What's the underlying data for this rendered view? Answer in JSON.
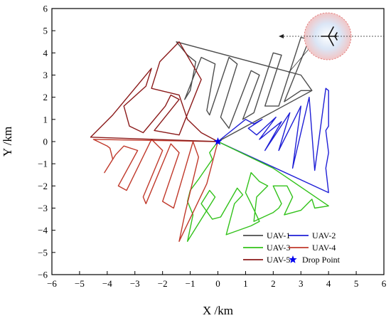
{
  "chart_data": {
    "type": "line",
    "xlabel": "X /km",
    "ylabel": "Y /km",
    "xlim": [
      -6,
      6
    ],
    "ylim": [
      -6,
      6
    ],
    "ticks": [
      -6,
      -5,
      -4,
      -3,
      -2,
      -1,
      0,
      1,
      2,
      3,
      4,
      5,
      6
    ],
    "tick_labels": [
      "−6",
      "−5",
      "−4",
      "−3",
      "−2",
      "−1",
      "0",
      "1",
      "2",
      "3",
      "4",
      "5",
      "6"
    ],
    "grid": false,
    "legend_position": "bottom-right",
    "series": [
      {
        "name": "UAV-1",
        "color": "#4d4d4d",
        "points": [
          [
            0,
            0
          ],
          [
            3.4,
            2.3
          ],
          [
            3.0,
            2.3
          ],
          [
            2.4,
            1.8
          ],
          [
            3.3,
            4.6
          ],
          [
            3.0,
            4.7
          ],
          [
            2.2,
            1.6
          ],
          [
            1.7,
            1.6
          ],
          [
            2.3,
            3.9
          ],
          [
            2.0,
            4.0
          ],
          [
            1.3,
            1.3
          ],
          [
            0.9,
            1.0
          ],
          [
            1.5,
            3.0
          ],
          [
            1.2,
            3.2
          ],
          [
            0.4,
            0.6
          ],
          [
            0.1,
            1.1
          ],
          [
            0.7,
            3.5
          ],
          [
            0.4,
            3.8
          ],
          [
            -0.3,
            1.2
          ],
          [
            -0.4,
            1.4
          ],
          [
            -0.1,
            3.5
          ],
          [
            -0.6,
            3.8
          ],
          [
            -1.2,
            1.9
          ],
          [
            -1.0,
            2.3
          ],
          [
            -0.8,
            3.6
          ],
          [
            -1.1,
            3.9
          ],
          [
            -1.5,
            4.5
          ],
          [
            3.0,
            3.0
          ],
          [
            3.4,
            2.3
          ]
        ]
      },
      {
        "name": "UAV-2",
        "color": "#1f1fd6",
        "points": [
          [
            0,
            0
          ],
          [
            1.0,
            1.0
          ],
          [
            1.3,
            0.8
          ],
          [
            1.6,
            1.0
          ],
          [
            1.1,
            0.6
          ],
          [
            1.4,
            0.3
          ],
          [
            2.1,
            1.1
          ],
          [
            1.5,
            0.1
          ],
          [
            2.3,
            0.9
          ],
          [
            1.7,
            -0.4
          ],
          [
            2.6,
            1.3
          ],
          [
            2.2,
            -0.4
          ],
          [
            3.0,
            1.6
          ],
          [
            2.7,
            -1.2
          ],
          [
            3.3,
            2.0
          ],
          [
            3.5,
            -1.3
          ],
          [
            3.9,
            2.4
          ],
          [
            4.0,
            2.3
          ],
          [
            4.0,
            0.7
          ],
          [
            3.9,
            0.5
          ],
          [
            4.0,
            -0.5
          ],
          [
            3.9,
            -1.2
          ],
          [
            4.0,
            -2.3
          ],
          [
            0,
            0
          ]
        ]
      },
      {
        "name": "UAV-3",
        "color": "#32c21a",
        "points": [
          [
            0,
            0
          ],
          [
            -0.3,
            -0.5
          ],
          [
            -0.2,
            -0.8
          ],
          [
            -0.7,
            -1.7
          ],
          [
            -1.0,
            -2.2
          ],
          [
            -1.1,
            -2.7
          ],
          [
            -1.0,
            -3.0
          ],
          [
            -0.9,
            -3.3
          ],
          [
            -1.1,
            -4.5
          ],
          [
            -0.1,
            -2.5
          ],
          [
            -0.3,
            -2.2
          ],
          [
            -0.6,
            -2.8
          ],
          [
            -0.2,
            -3.5
          ],
          [
            0.1,
            -3.4
          ],
          [
            0.7,
            -2.1
          ],
          [
            0.9,
            -2.4
          ],
          [
            0.6,
            -2.8
          ],
          [
            0.3,
            -4.2
          ],
          [
            1.2,
            -3.8
          ],
          [
            1.5,
            -3.6
          ],
          [
            1.2,
            -2.8
          ],
          [
            1.0,
            -2.3
          ],
          [
            1.2,
            -1.4
          ],
          [
            1.5,
            -1.8
          ],
          [
            1.8,
            -2.0
          ],
          [
            1.4,
            -2.5
          ],
          [
            1.3,
            -3.6
          ],
          [
            2.0,
            -3.2
          ],
          [
            2.2,
            -3.0
          ],
          [
            2.3,
            -2.8
          ],
          [
            2.0,
            -2.0
          ],
          [
            2.5,
            -2.0
          ],
          [
            2.7,
            -2.5
          ],
          [
            2.4,
            -3.3
          ],
          [
            3.0,
            -3.1
          ],
          [
            3.4,
            -2.6
          ],
          [
            3.5,
            -3.0
          ],
          [
            4.0,
            -2.9
          ],
          [
            2.0,
            -1.2
          ],
          [
            0,
            0
          ]
        ]
      },
      {
        "name": "UAV-4",
        "color": "#c0392b",
        "points": [
          [
            0,
            0
          ],
          [
            -4.5,
            0.1
          ],
          [
            -4.0,
            -0.2
          ],
          [
            -3.9,
            -0.3
          ],
          [
            -3.8,
            -0.8
          ],
          [
            -4.1,
            -1.4
          ],
          [
            -3.7,
            -0.6
          ],
          [
            -3.4,
            -0.2
          ],
          [
            -2.9,
            -0.4
          ],
          [
            -3.6,
            -2.0
          ],
          [
            -3.3,
            -2.2
          ],
          [
            -2.4,
            0.1
          ],
          [
            -2.0,
            -0.4
          ],
          [
            -2.7,
            -2.5
          ],
          [
            -2.6,
            -2.8
          ],
          [
            -1.7,
            -0.1
          ],
          [
            -1.4,
            -0.5
          ],
          [
            -2.0,
            -2.7
          ],
          [
            -1.6,
            -3.0
          ],
          [
            -0.9,
            0.0
          ],
          [
            -0.7,
            -0.7
          ],
          [
            -1.2,
            -3.3
          ],
          [
            -1.4,
            -4.5
          ],
          [
            -0.4,
            -1.9
          ],
          [
            0,
            0
          ]
        ]
      },
      {
        "name": "UAV-5",
        "color": "#8b1a1a",
        "points": [
          [
            0,
            0
          ],
          [
            -4.6,
            0.2
          ],
          [
            -3.8,
            1.2
          ],
          [
            -2.4,
            3.3
          ],
          [
            -2.6,
            2.5
          ],
          [
            -3.4,
            1.6
          ],
          [
            -3.2,
            0.7
          ],
          [
            -2.7,
            0.4
          ],
          [
            -1.9,
            1.6
          ],
          [
            -1.7,
            2.1
          ],
          [
            -1.4,
            1.9
          ],
          [
            -2.3,
            0.5
          ],
          [
            -1.4,
            0.3
          ],
          [
            -0.6,
            2.8
          ],
          [
            -1.4,
            4.5
          ],
          [
            -2.1,
            3.6
          ],
          [
            -2.4,
            2.4
          ],
          [
            -1.4,
            2.1
          ],
          [
            -1.1,
            1.0
          ],
          [
            -0.6,
            0.4
          ],
          [
            0,
            0
          ]
        ]
      }
    ],
    "drop_point": {
      "name": "Drop Point",
      "x": 0,
      "y": 0,
      "color": "#0000ee"
    }
  },
  "legend": {
    "columns": [
      {
        "items": [
          "UAV-1",
          "UAV-3",
          "UAV-5"
        ]
      },
      {
        "items": [
          "UAV-2",
          "UAV-4",
          "Drop Point"
        ]
      }
    ]
  },
  "inset": {
    "icon": "aircraft-icon",
    "color": "#f2c6c6",
    "arrow_dir": "left"
  }
}
